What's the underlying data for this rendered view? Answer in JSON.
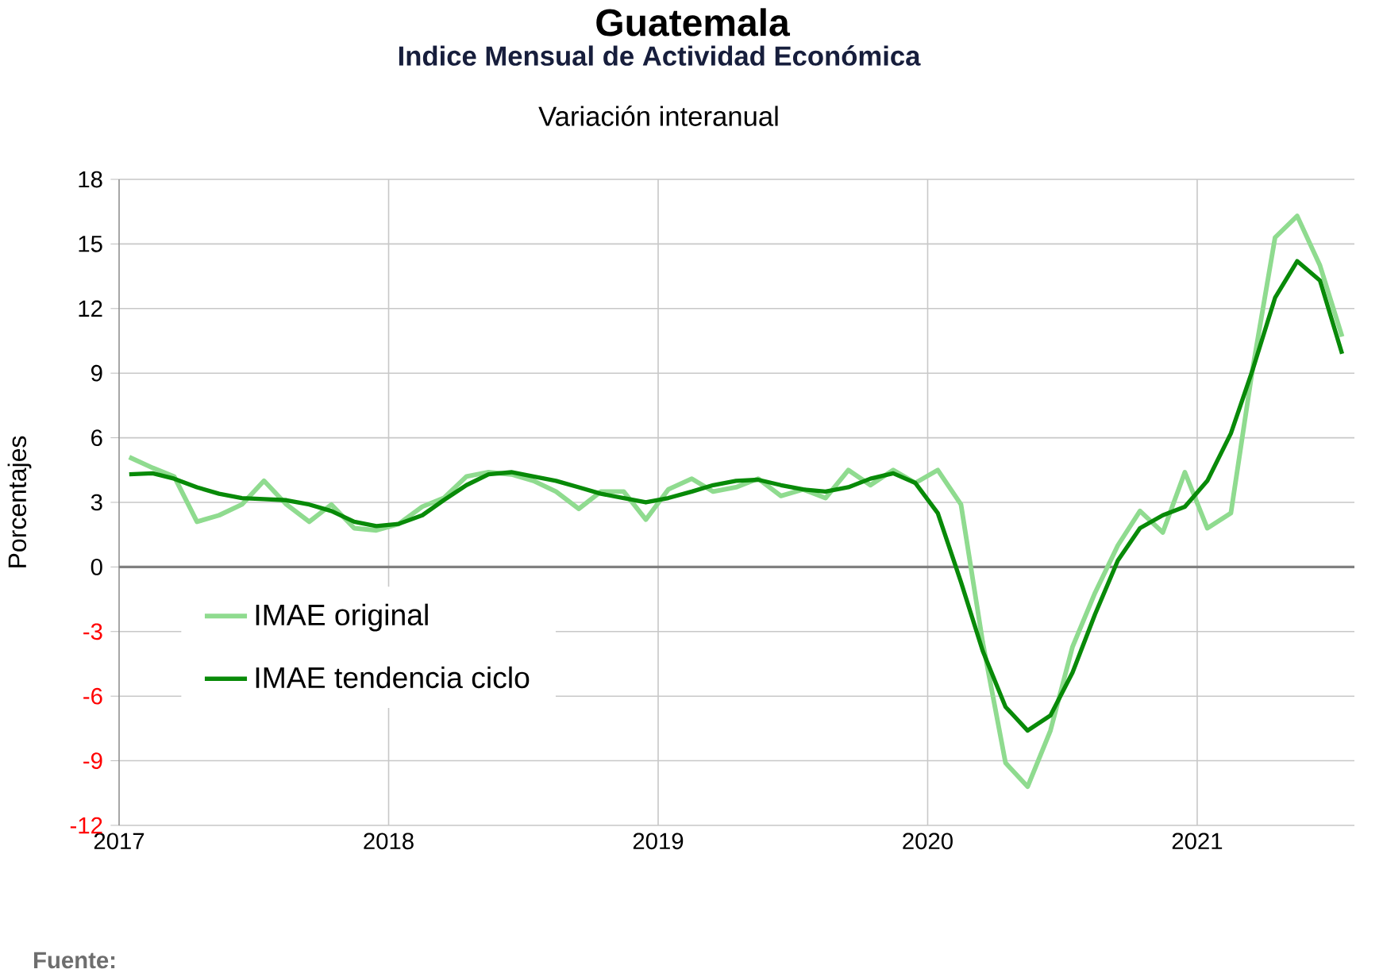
{
  "chart_data": {
    "type": "line",
    "title": "Guatemala",
    "subtitle": "Indice Mensual de  Actividad Económica",
    "annotations": [
      "Variación interanual",
      "Fuente:"
    ],
    "ylabel": "Porcentajes",
    "x": [
      "2017-01-15",
      "2017-02-15",
      "2017-03-15",
      "2017-04-15",
      "2017-05-15",
      "2017-06-15",
      "2017-07-15",
      "2017-08-15",
      "2017-09-15",
      "2017-10-15",
      "2017-11-15",
      "2017-12-15",
      "2018-01-15",
      "2018-02-15",
      "2018-03-15",
      "2018-04-15",
      "2018-05-15",
      "2018-06-15",
      "2018-07-15",
      "2018-08-15",
      "2018-09-15",
      "2018-10-15",
      "2018-11-15",
      "2018-12-15",
      "2019-01-15",
      "2019-02-15",
      "2019-03-15",
      "2019-04-15",
      "2019-05-15",
      "2019-06-15",
      "2019-07-15",
      "2019-08-15",
      "2019-09-15",
      "2019-10-15",
      "2019-11-15",
      "2019-12-15",
      "2020-01-15",
      "2020-02-15",
      "2020-03-15",
      "2020-04-15",
      "2020-05-15",
      "2020-06-15",
      "2020-07-15",
      "2020-08-15",
      "2020-09-15",
      "2020-10-15",
      "2020-11-15",
      "2020-12-15",
      "2021-01-15",
      "2021-02-15",
      "2021-03-15",
      "2021-04-15",
      "2021-05-15",
      "2021-06-15",
      "2021-07-15"
    ],
    "series": [
      {
        "name": "IMAE original",
        "color": "#8fdb8f",
        "values": [
          5.1,
          4.6,
          4.2,
          2.1,
          2.4,
          2.9,
          4.0,
          2.9,
          2.1,
          2.9,
          1.8,
          1.7,
          2.0,
          2.8,
          3.2,
          4.2,
          4.4,
          4.3,
          4.0,
          3.5,
          2.7,
          3.5,
          3.5,
          2.2,
          3.6,
          4.1,
          3.5,
          3.7,
          4.1,
          3.3,
          3.6,
          3.2,
          4.5,
          3.8,
          4.5,
          3.9,
          4.5,
          2.9,
          -3.5,
          -9.1,
          -10.2,
          -7.6,
          -3.7,
          -1.2,
          1.0,
          2.6,
          1.6,
          4.4,
          1.8,
          2.5,
          9.1,
          15.3,
          16.3,
          14.0,
          10.7
        ]
      },
      {
        "name": "IMAE tendencia ciclo",
        "color": "#088a08",
        "values": [
          4.3,
          4.35,
          4.1,
          3.7,
          3.4,
          3.2,
          3.15,
          3.1,
          2.9,
          2.6,
          2.1,
          1.9,
          2.0,
          2.4,
          3.1,
          3.8,
          4.3,
          4.4,
          4.2,
          4.0,
          3.7,
          3.4,
          3.2,
          3.0,
          3.2,
          3.5,
          3.8,
          4.0,
          4.05,
          3.8,
          3.6,
          3.5,
          3.7,
          4.1,
          4.35,
          3.9,
          2.5,
          -0.7,
          -3.9,
          -6.5,
          -7.6,
          -6.9,
          -4.9,
          -2.2,
          0.3,
          1.8,
          2.4,
          2.8,
          4.0,
          6.2,
          9.1,
          12.5,
          14.2,
          13.3,
          9.9
        ]
      }
    ],
    "xlim": [
      "2017-01",
      "2021-08"
    ],
    "xticks": [
      "2017",
      "2018",
      "2019",
      "2020",
      "2021"
    ],
    "ylim": [
      -12,
      18
    ],
    "yticks": [
      -12,
      -9,
      -6,
      -3,
      0,
      3,
      6,
      9,
      12,
      15,
      18
    ],
    "ref_lines": [
      {
        "axis": "y",
        "value": 0,
        "color": "#808080"
      }
    ],
    "grid": true,
    "legend": "left",
    "line_style": "solid"
  }
}
